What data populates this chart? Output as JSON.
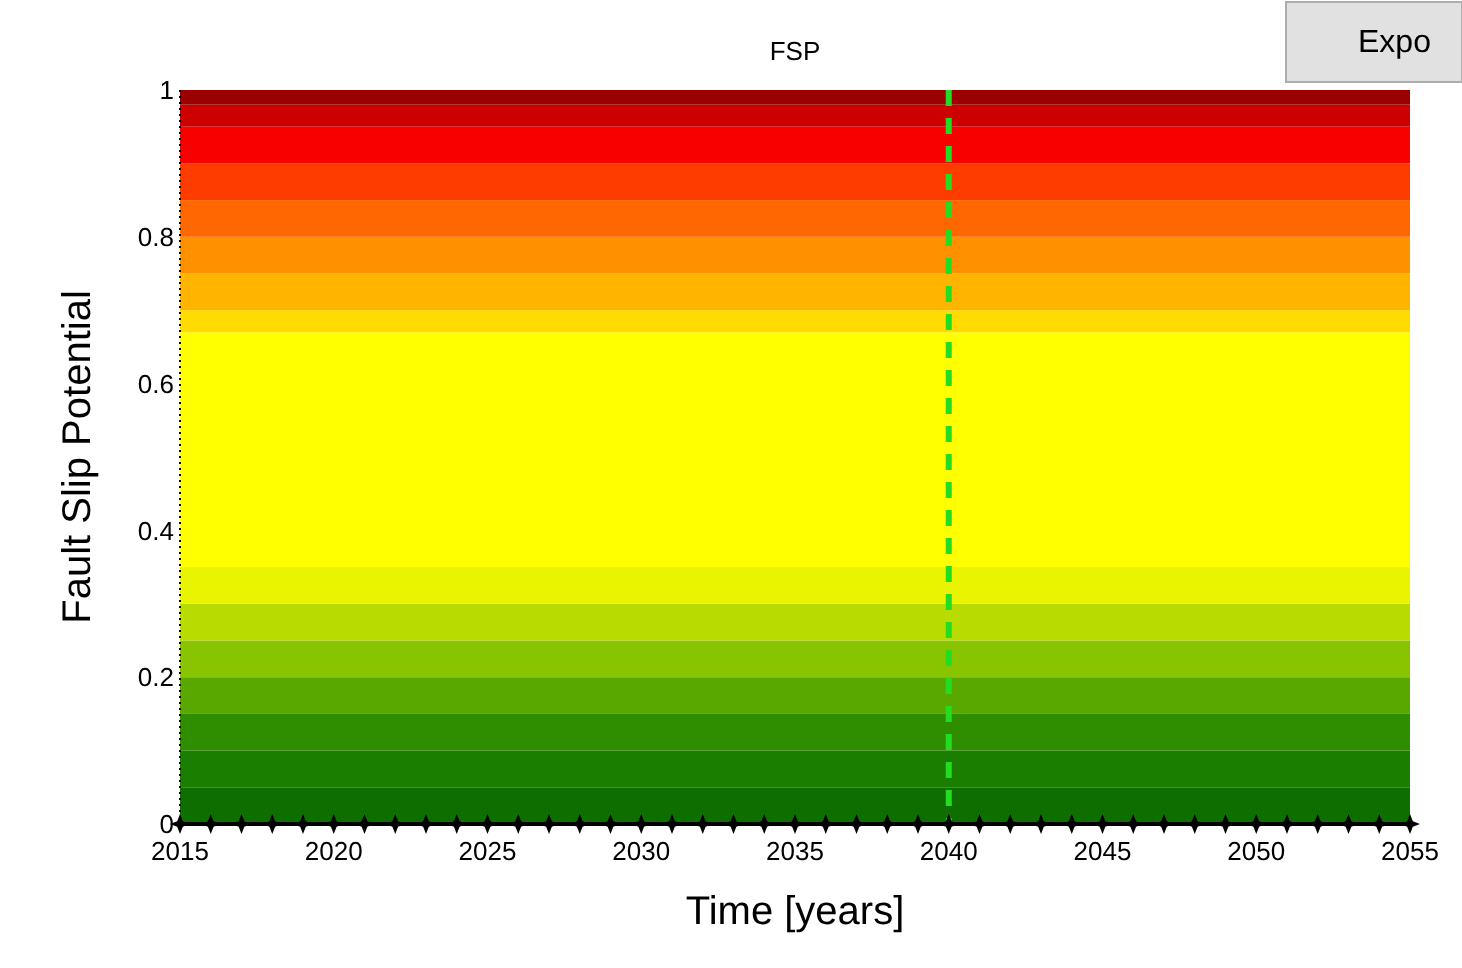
{
  "chart_data": {
    "type": "line",
    "title": "FSP",
    "xlabel": "Time [years]",
    "ylabel": "Fault Slip Potential",
    "x": [
      2015,
      2016,
      2017,
      2018,
      2019,
      2020,
      2021,
      2022,
      2023,
      2024,
      2025,
      2026,
      2027,
      2028,
      2029,
      2030,
      2031,
      2032,
      2033,
      2034,
      2035,
      2036,
      2037,
      2038,
      2039,
      2040,
      2041,
      2042,
      2043,
      2044,
      2045,
      2046,
      2047,
      2048,
      2049,
      2050,
      2051,
      2052,
      2053,
      2054,
      2055
    ],
    "series": [
      {
        "color": "#000000",
        "values": [
          0,
          0,
          0,
          0,
          0,
          0,
          0,
          0,
          0,
          0,
          0,
          0,
          0,
          0,
          0,
          0,
          0,
          0,
          0,
          0,
          0,
          0,
          0,
          0,
          0,
          0,
          0,
          0,
          0,
          0,
          0,
          0,
          0,
          0,
          0,
          0,
          0,
          0,
          0,
          0,
          0
        ]
      }
    ],
    "marker": "star",
    "line_style": "solid",
    "grid": false,
    "xlim": [
      2015,
      2055
    ],
    "xticks": [
      2015,
      2020,
      2025,
      2030,
      2035,
      2040,
      2045,
      2050,
      2055
    ],
    "ylim": [
      0,
      1
    ],
    "yticks": [
      0,
      0.2,
      0.4,
      0.6,
      0.8,
      1
    ],
    "ref_lines": [
      {
        "axis": "x",
        "value": 2040,
        "color": "#22dd22",
        "line_style": "dashed"
      }
    ],
    "bands": [
      {
        "axis": "y",
        "from": 0,
        "to": 0.05,
        "color": "#0e6e00"
      },
      {
        "axis": "y",
        "from": 0.05,
        "to": 0.1,
        "color": "#1a7e00"
      },
      {
        "axis": "y",
        "from": 0.1,
        "to": 0.15,
        "color": "#2e8e00"
      },
      {
        "axis": "y",
        "from": 0.15,
        "to": 0.2,
        "color": "#58a800"
      },
      {
        "axis": "y",
        "from": 0.2,
        "to": 0.25,
        "color": "#88c400"
      },
      {
        "axis": "y",
        "from": 0.25,
        "to": 0.3,
        "color": "#b8dc00"
      },
      {
        "axis": "y",
        "from": 0.3,
        "to": 0.35,
        "color": "#e8f400"
      },
      {
        "axis": "y",
        "from": 0.35,
        "to": 0.67,
        "color": "#ffff00"
      },
      {
        "axis": "y",
        "from": 0.67,
        "to": 0.7,
        "color": "#ffdc00"
      },
      {
        "axis": "y",
        "from": 0.7,
        "to": 0.75,
        "color": "#ffb400"
      },
      {
        "axis": "y",
        "from": 0.75,
        "to": 0.8,
        "color": "#ff9000"
      },
      {
        "axis": "y",
        "from": 0.8,
        "to": 0.85,
        "color": "#ff6800"
      },
      {
        "axis": "y",
        "from": 0.85,
        "to": 0.9,
        "color": "#ff3c00"
      },
      {
        "axis": "y",
        "from": 0.9,
        "to": 0.95,
        "color": "#f80000"
      },
      {
        "axis": "y",
        "from": 0.95,
        "to": 0.98,
        "color": "#cc0000"
      },
      {
        "axis": "y",
        "from": 0.98,
        "to": 1,
        "color": "#9a0000"
      }
    ],
    "annotations": [
      "Expo"
    ]
  }
}
